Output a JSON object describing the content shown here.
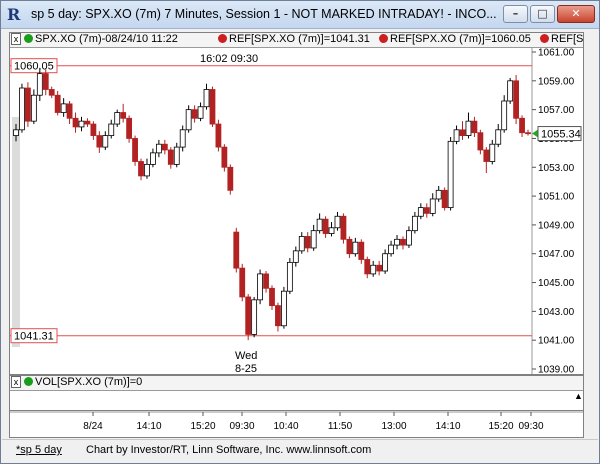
{
  "window": {
    "icon": "R",
    "title": "sp 5 day: SPX.XO (7m) 7 Minutes, Session 1 - NOT MARKED INTRADAY! - INCO...",
    "minimize_label": "–",
    "maximize_label": "□",
    "close_label": "✕"
  },
  "price_pane": {
    "close_label": "x",
    "legend": {
      "symbol": "SPX.XO (7m)-08/24/10 11:22",
      "ref1": "REF[SPX.XO (7m)]=1041.31",
      "ref2": "REF[SPX.XO (7m)]=1060.05",
      "ref3": "REF[SPX.XO (7m)]"
    },
    "time_label": "16:02  09:30",
    "day_label_line1": "Wed",
    "day_label_line2": "8-25",
    "ref_high": "1060.05",
    "ref_low": "1041.31",
    "last_price": "1055.34"
  },
  "volume_pane": {
    "close_label": "x",
    "legend": "VOL[SPX.XO (7m)]=0"
  },
  "x_axis": {
    "ticks": [
      "8/24",
      "14:10",
      "15:20",
      "09:30",
      "10:40",
      "11:50",
      "13:00",
      "14:10",
      "15:20",
      "09:30"
    ]
  },
  "status_bar": {
    "tab": "*sp 5 day",
    "credit": "Chart by Investor/RT, Linn Software, Inc. www.linnsoft.com"
  },
  "colors": {
    "up": "#000000",
    "down": "#b22222",
    "ref_line": "#e05050",
    "last_price_marker": "#22aa22"
  },
  "chart_data": {
    "type": "candlestick",
    "ylim": [
      1038.5,
      1061.5
    ],
    "y_ticks": [
      1039.0,
      1041.0,
      1043.0,
      1045.0,
      1047.0,
      1049.0,
      1051.0,
      1053.0,
      1055.0,
      1057.0,
      1059.0,
      1061.0
    ],
    "reference_lines": [
      1060.05,
      1041.31
    ],
    "last_value": 1055.34,
    "bars": [
      [
        1055.2,
        1055.6,
        1054.8,
        1056.0
      ],
      [
        1055.6,
        1058.5,
        1055.4,
        1058.8
      ],
      [
        1058.5,
        1056.2,
        1055.8,
        1058.9
      ],
      [
        1056.2,
        1058.0,
        1056.0,
        1058.4
      ],
      [
        1058.0,
        1059.5,
        1057.6,
        1059.9
      ],
      [
        1059.5,
        1058.4,
        1058.0,
        1059.8
      ],
      [
        1058.4,
        1058.0,
        1057.8,
        1058.6
      ],
      [
        1058.0,
        1056.8,
        1056.6,
        1058.3
      ],
      [
        1056.8,
        1057.4,
        1056.5,
        1057.8
      ],
      [
        1057.4,
        1056.4,
        1056.0,
        1057.6
      ],
      [
        1056.4,
        1055.8,
        1055.4,
        1056.8
      ],
      [
        1055.8,
        1056.2,
        1055.5,
        1056.5
      ],
      [
        1056.2,
        1056.0,
        1055.8,
        1056.4
      ],
      [
        1056.0,
        1055.2,
        1054.9,
        1056.2
      ],
      [
        1055.2,
        1054.4,
        1054.0,
        1055.5
      ],
      [
        1054.4,
        1055.2,
        1054.2,
        1055.5
      ],
      [
        1055.2,
        1056.0,
        1055.0,
        1056.3
      ],
      [
        1056.0,
        1056.8,
        1055.8,
        1057.0
      ],
      [
        1056.8,
        1056.4,
        1056.1,
        1057.4
      ],
      [
        1056.4,
        1055.0,
        1054.7,
        1056.6
      ],
      [
        1055.0,
        1053.4,
        1053.1,
        1055.2
      ],
      [
        1053.4,
        1052.4,
        1052.1,
        1053.6
      ],
      [
        1052.4,
        1053.2,
        1052.2,
        1053.6
      ],
      [
        1053.2,
        1054.0,
        1053.0,
        1054.3
      ],
      [
        1054.0,
        1054.6,
        1053.7,
        1054.9
      ],
      [
        1054.6,
        1054.2,
        1053.9,
        1054.9
      ],
      [
        1054.2,
        1053.2,
        1052.9,
        1054.4
      ],
      [
        1053.2,
        1054.4,
        1053.0,
        1054.7
      ],
      [
        1054.4,
        1055.6,
        1054.1,
        1055.9
      ],
      [
        1055.6,
        1057.0,
        1055.4,
        1057.3
      ],
      [
        1057.0,
        1056.4,
        1056.1,
        1057.3
      ],
      [
        1056.4,
        1057.2,
        1056.2,
        1057.5
      ],
      [
        1057.2,
        1058.4,
        1057.0,
        1058.8
      ],
      [
        1058.4,
        1056.0,
        1055.8,
        1058.6
      ],
      [
        1056.0,
        1054.4,
        1054.1,
        1056.3
      ],
      [
        1054.4,
        1053.0,
        1052.7,
        1054.6
      ],
      [
        1053.0,
        1051.4,
        1051.1,
        1053.2
      ],
      [
        1048.5,
        1046.0,
        1045.7,
        1048.8
      ],
      [
        1046.0,
        1044.0,
        1043.7,
        1046.3
      ],
      [
        1044.0,
        1041.4,
        1041.0,
        1044.2
      ],
      [
        1041.4,
        1043.8,
        1041.2,
        1044.0
      ],
      [
        1043.8,
        1045.6,
        1043.5,
        1045.9
      ],
      [
        1045.6,
        1044.6,
        1044.3,
        1045.8
      ],
      [
        1044.6,
        1043.4,
        1043.1,
        1044.8
      ],
      [
        1043.4,
        1042.0,
        1041.6,
        1043.6
      ],
      [
        1042.0,
        1044.4,
        1041.8,
        1044.7
      ],
      [
        1044.4,
        1046.4,
        1044.2,
        1046.7
      ],
      [
        1046.4,
        1047.2,
        1046.1,
        1047.5
      ],
      [
        1047.2,
        1048.2,
        1047.0,
        1048.5
      ],
      [
        1048.2,
        1047.4,
        1047.1,
        1048.5
      ],
      [
        1047.4,
        1048.6,
        1047.2,
        1049.0
      ],
      [
        1048.6,
        1049.4,
        1048.4,
        1049.8
      ],
      [
        1049.4,
        1048.4,
        1048.1,
        1049.6
      ],
      [
        1048.4,
        1048.8,
        1048.2,
        1049.2
      ],
      [
        1048.8,
        1049.6,
        1048.6,
        1049.9
      ],
      [
        1049.6,
        1048.0,
        1047.7,
        1049.8
      ],
      [
        1048.0,
        1047.0,
        1046.7,
        1048.2
      ],
      [
        1047.0,
        1047.8,
        1046.8,
        1048.1
      ],
      [
        1047.8,
        1046.6,
        1046.3,
        1048.0
      ],
      [
        1046.6,
        1045.6,
        1045.3,
        1046.8
      ],
      [
        1045.6,
        1046.2,
        1045.4,
        1046.5
      ],
      [
        1046.2,
        1045.8,
        1045.5,
        1046.5
      ],
      [
        1045.8,
        1047.0,
        1045.6,
        1047.3
      ],
      [
        1047.0,
        1047.6,
        1046.8,
        1047.9
      ],
      [
        1047.6,
        1048.0,
        1047.3,
        1048.3
      ],
      [
        1048.0,
        1047.6,
        1047.3,
        1048.2
      ],
      [
        1047.6,
        1048.6,
        1047.4,
        1048.9
      ],
      [
        1048.6,
        1049.6,
        1048.4,
        1049.9
      ],
      [
        1049.6,
        1050.2,
        1049.4,
        1050.5
      ],
      [
        1050.2,
        1049.8,
        1049.5,
        1050.5
      ],
      [
        1049.8,
        1050.8,
        1049.6,
        1051.2
      ],
      [
        1050.8,
        1051.4,
        1050.6,
        1051.7
      ],
      [
        1051.4,
        1050.2,
        1050.0,
        1051.6
      ],
      [
        1050.2,
        1054.8,
        1050.0,
        1055.1
      ],
      [
        1054.8,
        1055.6,
        1054.6,
        1055.9
      ],
      [
        1055.6,
        1055.2,
        1054.9,
        1056.2
      ],
      [
        1055.2,
        1056.2,
        1055.0,
        1056.8
      ],
      [
        1056.2,
        1055.4,
        1055.1,
        1056.5
      ],
      [
        1055.4,
        1054.2,
        1053.9,
        1055.6
      ],
      [
        1054.2,
        1053.4,
        1052.6,
        1054.4
      ],
      [
        1053.4,
        1054.6,
        1053.2,
        1054.9
      ],
      [
        1054.6,
        1055.6,
        1054.4,
        1056.0
      ],
      [
        1055.6,
        1057.6,
        1055.4,
        1058.0
      ],
      [
        1057.6,
        1059.0,
        1057.4,
        1059.2
      ],
      [
        1059.0,
        1056.4,
        1056.0,
        1059.4
      ],
      [
        1056.4,
        1055.4,
        1055.1,
        1056.6
      ],
      [
        1055.4,
        1055.34,
        1055.2,
        1055.6
      ]
    ]
  }
}
